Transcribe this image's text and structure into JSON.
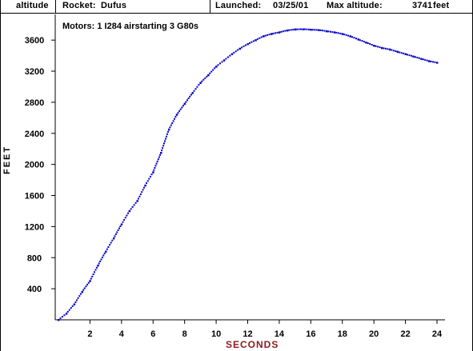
{
  "header": {
    "mode": "altitude",
    "rocket_label": "Rocket:",
    "rocket": "Dufus",
    "launched_label": "Launched:",
    "launched": "03/25/01",
    "max_label": "Max altitude:",
    "max_value": "3741",
    "max_unit": "feet"
  },
  "motors": "Motors:  1 I284 airstarting 3 G80s",
  "colors": {
    "series": "#0000cc",
    "xlabel": "#8b1a1a",
    "axis": "#000000"
  },
  "chart_data": {
    "type": "line",
    "xlabel": "SECONDS",
    "ylabel": "FEET",
    "xlim": [
      0,
      24
    ],
    "ylim": [
      0,
      3900
    ],
    "x_ticks": [
      2,
      4,
      6,
      8,
      10,
      12,
      14,
      16,
      18,
      20,
      22,
      24
    ],
    "y_ticks": [
      400,
      800,
      1200,
      1600,
      2000,
      2400,
      2800,
      3200,
      3600
    ],
    "x_tick_labels": [
      "2",
      "4",
      "6",
      "8",
      "10",
      "12",
      "14",
      "16",
      "18",
      "20",
      "22",
      "24"
    ],
    "y_tick_labels": [
      "400",
      "800",
      "1200",
      "1600",
      "2000",
      "2400",
      "2800",
      "3200",
      "3600"
    ],
    "grid": false,
    "series": [
      {
        "x": [
          0,
          0.5,
          1.0,
          1.5,
          2.0,
          2.5,
          3.0,
          3.5,
          4.0,
          4.5,
          5.0,
          5.5,
          6.0,
          6.5,
          7.0,
          7.5,
          8.0,
          8.5,
          9.0,
          9.5,
          10.0,
          10.5,
          11.0,
          11.5,
          12.0,
          12.5,
          13.0,
          13.5,
          14.0,
          14.5,
          15.0,
          15.5,
          16.0,
          16.5,
          17.0,
          17.5,
          18.0,
          18.5,
          19.0,
          19.5,
          20.0,
          20.5,
          21.0,
          21.5,
          22.0,
          22.5,
          23.0,
          23.5,
          24.0
        ],
        "y": [
          0,
          80,
          200,
          360,
          500,
          700,
          880,
          1050,
          1230,
          1400,
          1530,
          1730,
          1900,
          2150,
          2450,
          2640,
          2780,
          2920,
          3050,
          3150,
          3260,
          3340,
          3420,
          3490,
          3550,
          3600,
          3650,
          3680,
          3700,
          3725,
          3738,
          3741,
          3735,
          3730,
          3715,
          3700,
          3680,
          3650,
          3610,
          3570,
          3530,
          3500,
          3480,
          3450,
          3420,
          3390,
          3360,
          3330,
          3310
        ]
      }
    ]
  }
}
